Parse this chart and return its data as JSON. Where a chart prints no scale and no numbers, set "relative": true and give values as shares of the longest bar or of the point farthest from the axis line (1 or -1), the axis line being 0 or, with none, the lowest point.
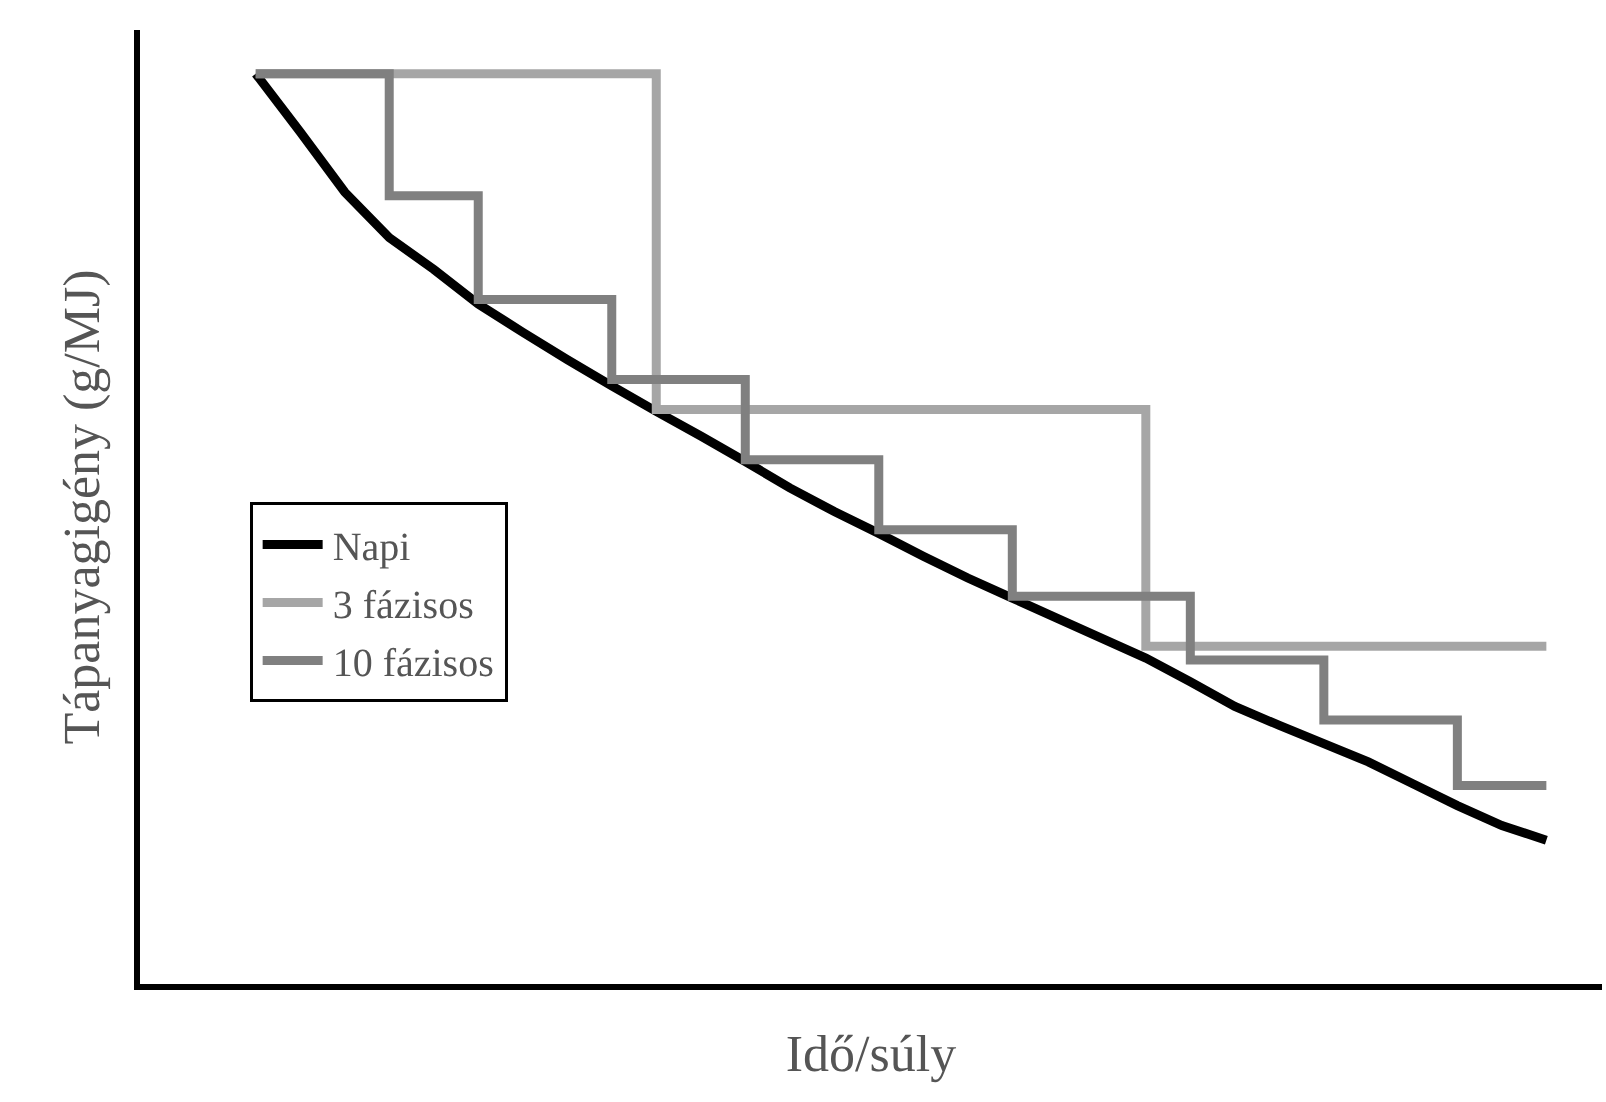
{
  "chart_data": {
    "type": "line",
    "relative": true,
    "xlabel": "Idő/súly",
    "ylabel": "Tápanyagigény (g/MJ)",
    "categories": [
      null,
      null,
      null,
      null,
      null,
      null,
      null,
      null,
      null,
      null,
      null,
      null,
      null,
      null,
      null,
      null,
      null,
      null,
      null,
      null,
      null,
      null,
      null,
      null,
      null,
      null,
      null,
      null,
      null,
      null
    ],
    "series": [
      {
        "name": "Napi",
        "color": "#000000",
        "values": [
          1.0,
          0.936,
          0.87,
          0.82,
          0.785,
          0.747,
          0.716,
          0.686,
          0.657,
          0.629,
          0.602,
          0.574,
          0.545,
          0.519,
          0.495,
          0.47,
          0.446,
          0.424,
          0.402,
          0.38,
          0.358,
          0.332,
          0.305,
          0.284,
          0.264,
          0.244,
          0.22,
          0.196,
          0.174,
          0.158
        ]
      },
      {
        "name": "3 fázisos",
        "type": "step",
        "color": "#a6a6a6",
        "values": [
          1.0,
          1.0,
          1.0,
          1.0,
          1.0,
          1.0,
          1.0,
          1.0,
          1.0,
          0.631,
          0.631,
          0.631,
          0.631,
          0.631,
          0.631,
          0.631,
          0.631,
          0.631,
          0.631,
          0.631,
          0.371,
          0.371,
          0.371,
          0.371,
          0.371,
          0.371,
          0.371,
          0.371,
          0.371,
          0.371
        ]
      },
      {
        "name": "10 fázisos",
        "type": "step",
        "color": "#808080",
        "values": [
          1.0,
          1.0,
          1.0,
          0.866,
          0.866,
          0.752,
          0.752,
          0.752,
          0.664,
          0.664,
          0.664,
          0.576,
          0.576,
          0.576,
          0.499,
          0.499,
          0.499,
          0.426,
          0.426,
          0.426,
          0.426,
          0.356,
          0.356,
          0.356,
          0.29,
          0.29,
          0.29,
          0.218,
          0.218,
          0.218
        ]
      }
    ],
    "legend": "left",
    "marker": "none",
    "line_style": "solid"
  }
}
